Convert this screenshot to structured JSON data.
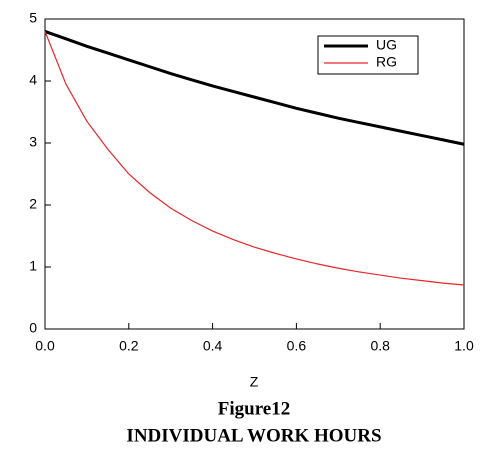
{
  "chart_data": {
    "type": "line",
    "x_label": "Z",
    "caption": "Figure12",
    "title": "INDIVIDUAL WORK HOURS",
    "x": [
      0,
      0.05,
      0.1,
      0.15,
      0.2,
      0.25,
      0.3,
      0.35,
      0.4,
      0.45,
      0.5,
      0.55,
      0.6,
      0.65,
      0.7,
      0.75,
      0.8,
      0.85,
      0.9,
      0.95,
      1.0
    ],
    "series": [
      {
        "name": "UG",
        "color": "#000000",
        "values": [
          4.8,
          4.68,
          4.56,
          4.45,
          4.34,
          4.23,
          4.12,
          4.02,
          3.92,
          3.83,
          3.74,
          3.65,
          3.56,
          3.48,
          3.4,
          3.33,
          3.26,
          3.19,
          3.12,
          3.05,
          2.98
        ]
      },
      {
        "name": "RG",
        "color": "#e8262b",
        "values": [
          4.8,
          3.95,
          3.35,
          2.9,
          2.5,
          2.2,
          1.95,
          1.75,
          1.58,
          1.44,
          1.32,
          1.22,
          1.13,
          1.05,
          0.98,
          0.92,
          0.87,
          0.82,
          0.78,
          0.74,
          0.71
        ]
      }
    ],
    "xlim": [
      0,
      1.0
    ],
    "ylim": [
      0,
      5
    ],
    "xticks": [
      {
        "value": 0,
        "label": "0.0"
      },
      {
        "value": 0.2,
        "label": "0.2"
      },
      {
        "value": 0.4,
        "label": "0.4"
      },
      {
        "value": 0.6,
        "label": "0.6"
      },
      {
        "value": 0.8,
        "label": "0.8"
      },
      {
        "value": 1.0,
        "label": "1.0"
      }
    ],
    "yticks": [
      0,
      1,
      2,
      3,
      4,
      5
    ],
    "legend": "upper right"
  }
}
